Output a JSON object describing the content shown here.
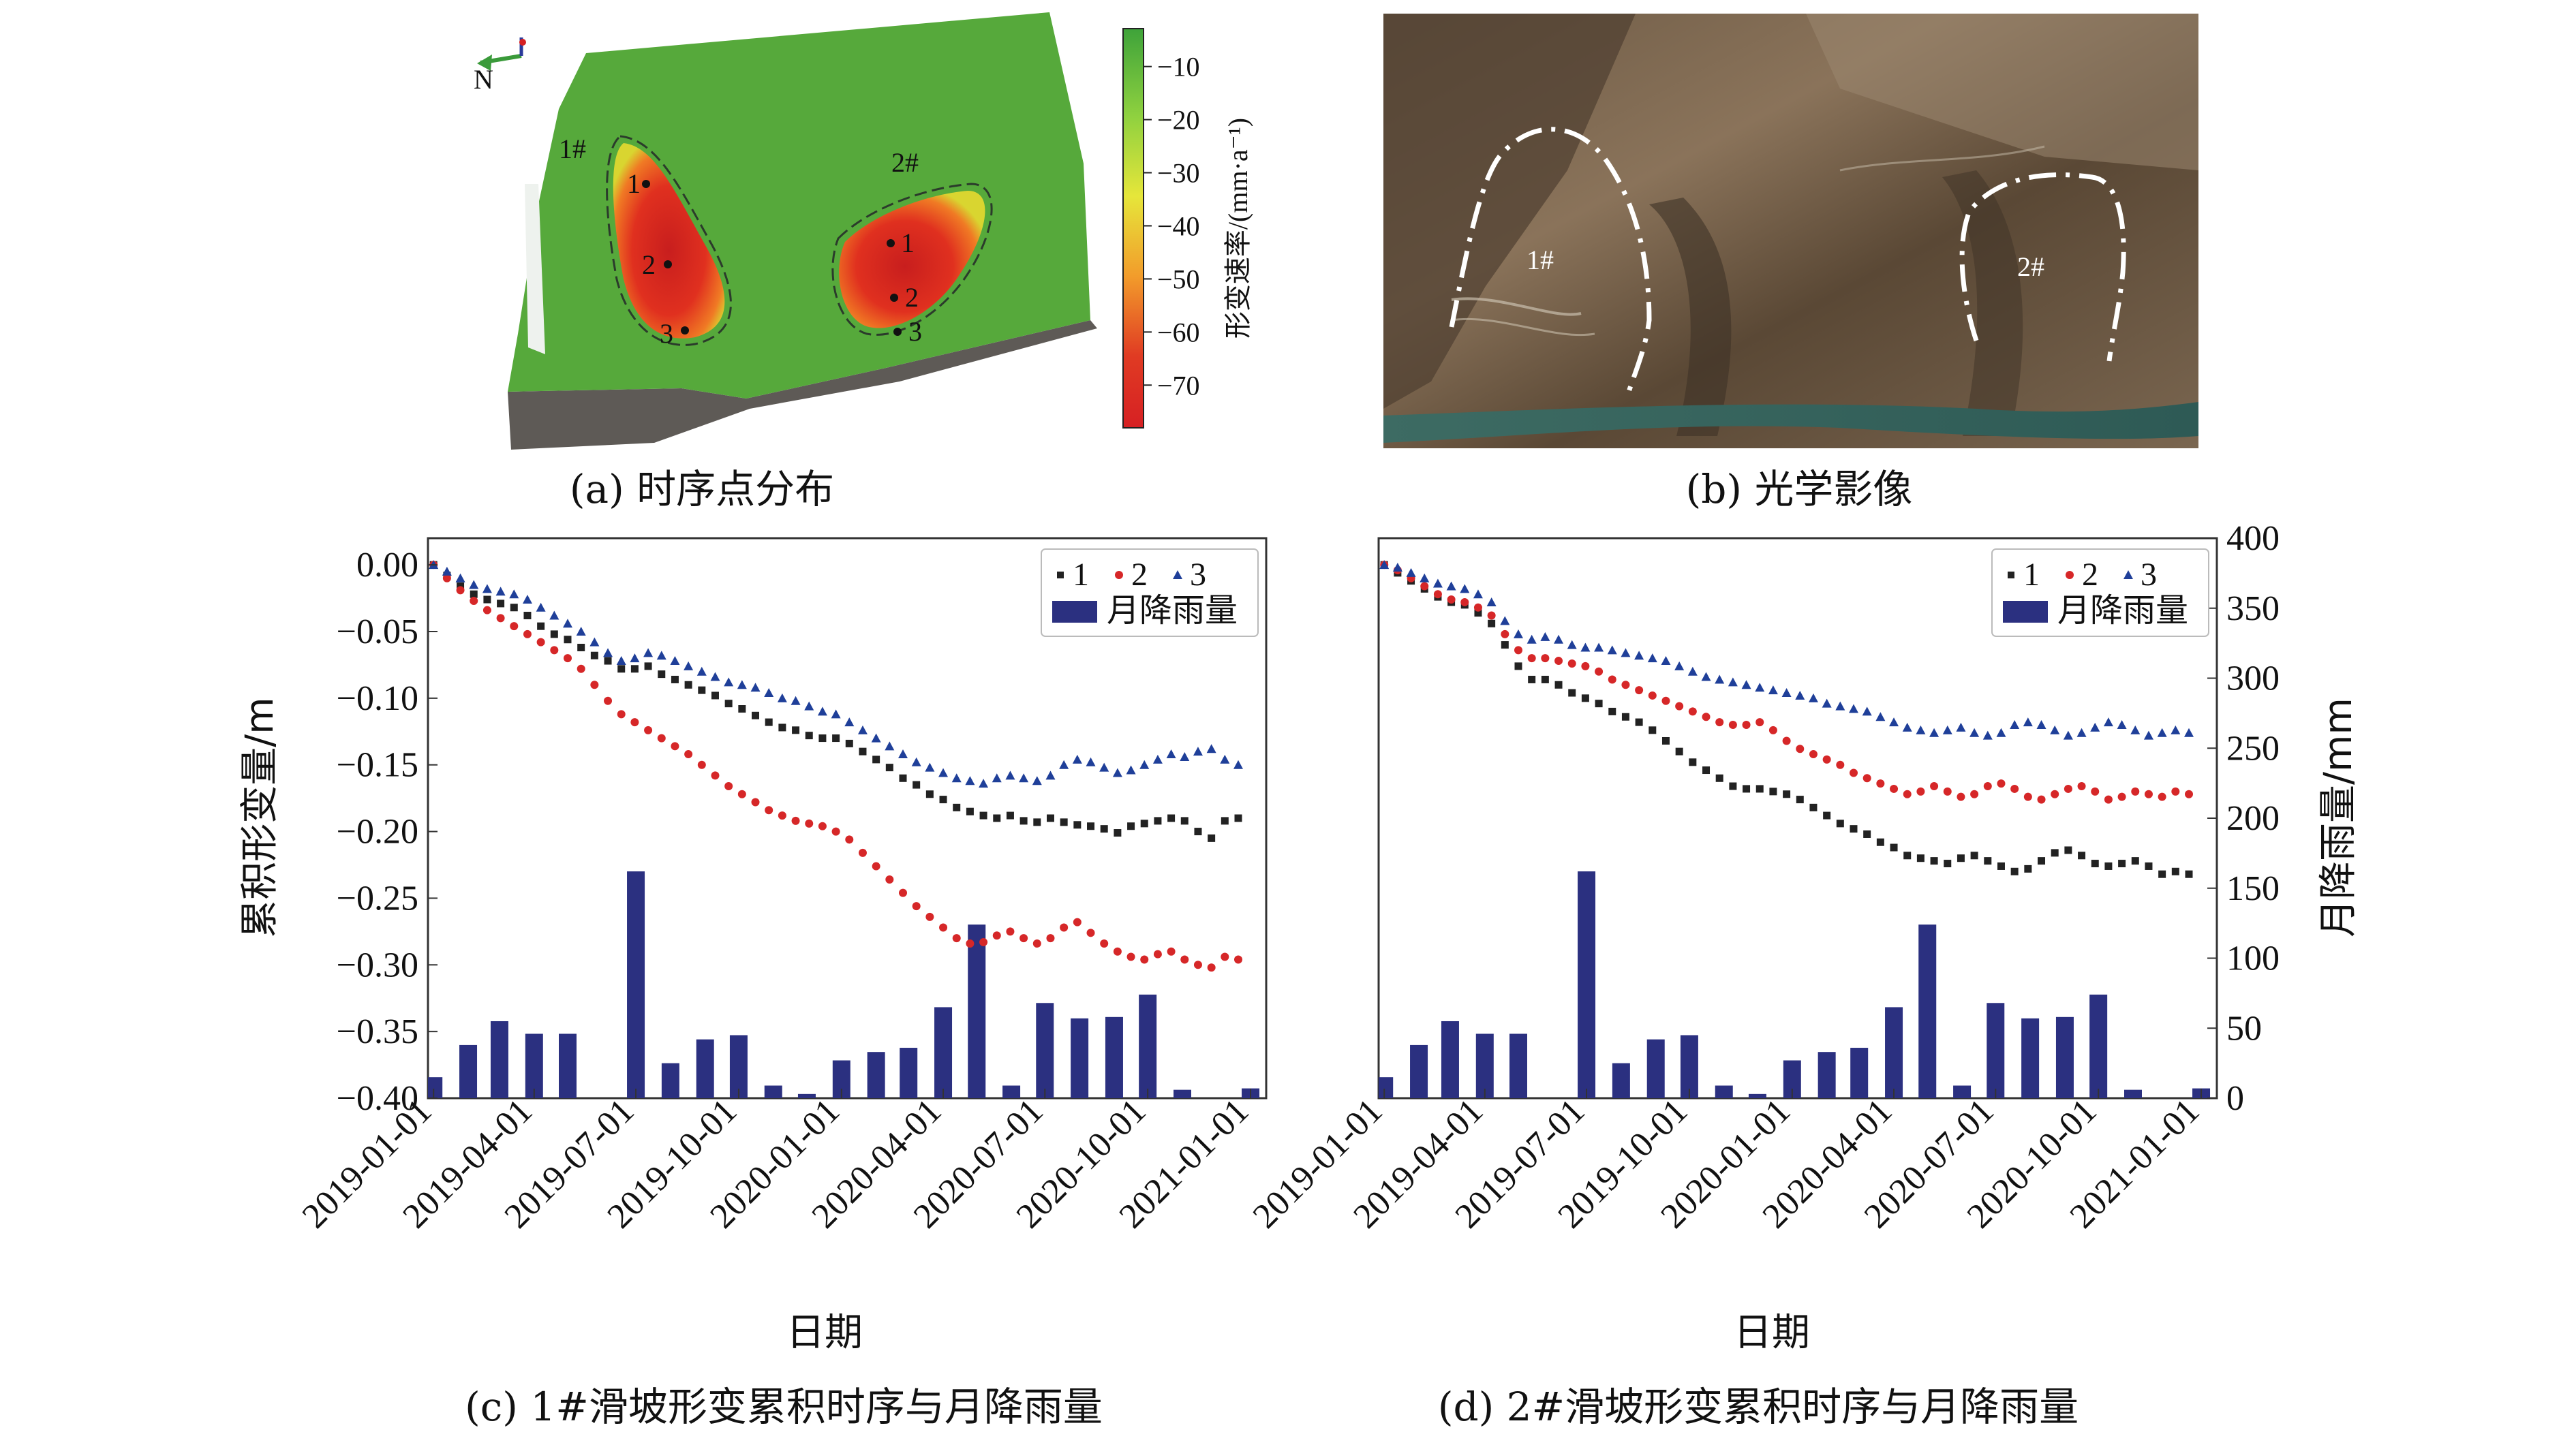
{
  "captions": {
    "a": "(a) 时序点分布",
    "b": "(b) 光学影像",
    "c": "(c) 1#滑坡形变累积时序与月降雨量",
    "d": "(d) 2#滑坡形变累积时序与月降雨量"
  },
  "panel_a": {
    "north": "N",
    "zone1_label": "1#",
    "zone2_label": "2#",
    "points": [
      "1",
      "2",
      "3"
    ],
    "colorbar": {
      "label": "形变速率/(mm·a⁻¹)",
      "ticks": [
        "−10",
        "−20",
        "−30",
        "−40",
        "−50",
        "−60",
        "−70"
      ],
      "colors": [
        "#3ea33a",
        "#8fd13f",
        "#e6e63a",
        "#f29c2b",
        "#e03b23",
        "#d62023"
      ]
    }
  },
  "panel_b": {
    "zone1_label": "1#",
    "zone2_label": "2#"
  },
  "chart_data": [
    {
      "type": "scatter",
      "title": "(c) 1#滑坡形变累积时序与月降雨量",
      "xlabel": "日期",
      "ylabel": "累积形变量/m",
      "y2label": "月降雨量/mm",
      "xticks": [
        "2019-01-01",
        "2019-04-01",
        "2019-07-01",
        "2019-10-01",
        "2020-01-01",
        "2020-04-01",
        "2020-07-01",
        "2020-10-01",
        "2021-01-01"
      ],
      "yticks": [
        "0.00",
        "−0.05",
        "−0.10",
        "−0.15",
        "−0.20",
        "−0.25",
        "−0.30",
        "−0.35",
        "−0.40"
      ],
      "y2ticks": [],
      "xlim": [
        -5,
        745
      ],
      "ylim": [
        -0.4,
        0.02
      ],
      "y2lim": [
        0,
        400
      ],
      "legend": {
        "series1": "1",
        "series2": "2",
        "series3": "3",
        "bars": "月降雨量"
      },
      "x_days": [
        0,
        12,
        24,
        36,
        48,
        60,
        72,
        84,
        96,
        108,
        120,
        132,
        144,
        156,
        168,
        180,
        192,
        204,
        216,
        228,
        240,
        252,
        264,
        276,
        288,
        300,
        312,
        324,
        336,
        348,
        360,
        372,
        384,
        396,
        408,
        420,
        432,
        444,
        456,
        468,
        480,
        492,
        504,
        516,
        528,
        540,
        552,
        564,
        576,
        588,
        600,
        612,
        624,
        636,
        648,
        660,
        672,
        684,
        696,
        708,
        720
      ],
      "series": [
        {
          "name": "1",
          "color": "#222222",
          "marker": "square",
          "values": [
            0.0,
            -0.008,
            -0.016,
            -0.022,
            -0.026,
            -0.029,
            -0.032,
            -0.038,
            -0.046,
            -0.052,
            -0.056,
            -0.062,
            -0.068,
            -0.072,
            -0.078,
            -0.078,
            -0.076,
            -0.082,
            -0.086,
            -0.09,
            -0.094,
            -0.098,
            -0.104,
            -0.108,
            -0.113,
            -0.118,
            -0.122,
            -0.124,
            -0.128,
            -0.13,
            -0.13,
            -0.134,
            -0.14,
            -0.146,
            -0.152,
            -0.16,
            -0.165,
            -0.172,
            -0.176,
            -0.182,
            -0.185,
            -0.188,
            -0.19,
            -0.188,
            -0.192,
            -0.193,
            -0.19,
            -0.193,
            -0.195,
            -0.196,
            -0.198,
            -0.201,
            -0.196,
            -0.194,
            -0.192,
            -0.19,
            -0.192,
            -0.2,
            -0.205,
            -0.192,
            -0.19
          ]
        },
        {
          "name": "2",
          "color": "#d62728",
          "marker": "circle",
          "values": [
            0.0,
            -0.01,
            -0.019,
            -0.027,
            -0.034,
            -0.04,
            -0.046,
            -0.052,
            -0.058,
            -0.064,
            -0.07,
            -0.078,
            -0.09,
            -0.102,
            -0.112,
            -0.118,
            -0.124,
            -0.13,
            -0.136,
            -0.142,
            -0.15,
            -0.158,
            -0.166,
            -0.172,
            -0.178,
            -0.184,
            -0.188,
            -0.192,
            -0.194,
            -0.196,
            -0.2,
            -0.206,
            -0.216,
            -0.226,
            -0.236,
            -0.246,
            -0.256,
            -0.264,
            -0.272,
            -0.28,
            -0.284,
            -0.283,
            -0.278,
            -0.275,
            -0.28,
            -0.284,
            -0.28,
            -0.272,
            -0.268,
            -0.276,
            -0.284,
            -0.29,
            -0.294,
            -0.296,
            -0.292,
            -0.29,
            -0.296,
            -0.3,
            -0.302,
            -0.294,
            -0.296
          ]
        },
        {
          "name": "3",
          "color": "#1f3f99",
          "marker": "triangle",
          "values": [
            0.0,
            -0.005,
            -0.01,
            -0.015,
            -0.018,
            -0.02,
            -0.022,
            -0.026,
            -0.032,
            -0.038,
            -0.044,
            -0.05,
            -0.058,
            -0.066,
            -0.072,
            -0.07,
            -0.066,
            -0.068,
            -0.072,
            -0.076,
            -0.08,
            -0.084,
            -0.088,
            -0.09,
            -0.092,
            -0.096,
            -0.1,
            -0.102,
            -0.106,
            -0.11,
            -0.112,
            -0.118,
            -0.124,
            -0.13,
            -0.136,
            -0.142,
            -0.148,
            -0.152,
            -0.156,
            -0.16,
            -0.162,
            -0.164,
            -0.16,
            -0.158,
            -0.16,
            -0.162,
            -0.158,
            -0.15,
            -0.146,
            -0.148,
            -0.152,
            -0.156,
            -0.154,
            -0.15,
            -0.146,
            -0.142,
            -0.144,
            -0.14,
            -0.138,
            -0.146,
            -0.15
          ]
        }
      ],
      "bar_x_days": [
        0,
        31,
        59,
        90,
        120,
        151,
        181,
        212,
        243,
        273,
        304,
        334,
        365,
        396,
        425,
        456,
        486,
        517,
        547,
        578,
        609,
        639,
        670,
        700,
        731
      ],
      "bars": [
        15,
        38,
        55,
        46,
        46,
        0,
        162,
        25,
        42,
        45,
        9,
        3,
        27,
        33,
        36,
        65,
        124,
        9,
        68,
        57,
        58,
        74,
        6,
        0,
        7
      ]
    },
    {
      "type": "scatter",
      "title": "(d) 2#滑坡形变累积时序与月降雨量",
      "xlabel": "日期",
      "ylabel": "",
      "y2label": "月降雨量/mm",
      "xticks": [
        "2019-01-01",
        "2019-04-01",
        "2019-07-01",
        "2019-10-01",
        "2020-01-01",
        "2020-04-01",
        "2020-07-01",
        "2020-10-01",
        "2021-01-01"
      ],
      "yticks": [],
      "y2ticks": [
        "400",
        "350",
        "300",
        "250",
        "200",
        "150",
        "100",
        "50",
        "0"
      ],
      "xlim": [
        -5,
        745
      ],
      "ylim": [
        -0.4,
        0.02
      ],
      "y2lim": [
        0,
        400
      ],
      "legend": {
        "series1": "1",
        "series2": "2",
        "series3": "3",
        "bars": "月降雨量"
      },
      "x_days": [
        0,
        12,
        24,
        36,
        48,
        60,
        72,
        84,
        96,
        108,
        120,
        132,
        144,
        156,
        168,
        180,
        192,
        204,
        216,
        228,
        240,
        252,
        264,
        276,
        288,
        300,
        312,
        324,
        336,
        348,
        360,
        372,
        384,
        396,
        408,
        420,
        432,
        444,
        456,
        468,
        480,
        492,
        504,
        516,
        528,
        540,
        552,
        564,
        576,
        588,
        600,
        612,
        624,
        636,
        648,
        660,
        672,
        684,
        696,
        708,
        720
      ],
      "series": [
        {
          "name": "1",
          "color": "#222222",
          "marker": "square",
          "values": [
            0.0,
            -0.006,
            -0.012,
            -0.018,
            -0.024,
            -0.028,
            -0.03,
            -0.036,
            -0.044,
            -0.06,
            -0.076,
            -0.086,
            -0.086,
            -0.09,
            -0.096,
            -0.1,
            -0.104,
            -0.11,
            -0.114,
            -0.118,
            -0.124,
            -0.132,
            -0.14,
            -0.148,
            -0.154,
            -0.16,
            -0.166,
            -0.168,
            -0.168,
            -0.17,
            -0.172,
            -0.176,
            -0.182,
            -0.188,
            -0.194,
            -0.198,
            -0.202,
            -0.208,
            -0.212,
            -0.218,
            -0.22,
            -0.222,
            -0.224,
            -0.22,
            -0.218,
            -0.222,
            -0.226,
            -0.23,
            -0.228,
            -0.222,
            -0.216,
            -0.214,
            -0.218,
            -0.224,
            -0.226,
            -0.224,
            -0.222,
            -0.226,
            -0.232,
            -0.23,
            -0.232
          ]
        },
        {
          "name": "2",
          "color": "#d62728",
          "marker": "circle",
          "values": [
            0.0,
            -0.004,
            -0.01,
            -0.016,
            -0.022,
            -0.026,
            -0.028,
            -0.032,
            -0.038,
            -0.052,
            -0.064,
            -0.07,
            -0.07,
            -0.072,
            -0.074,
            -0.076,
            -0.08,
            -0.086,
            -0.09,
            -0.094,
            -0.098,
            -0.102,
            -0.106,
            -0.11,
            -0.114,
            -0.118,
            -0.12,
            -0.12,
            -0.118,
            -0.124,
            -0.132,
            -0.138,
            -0.142,
            -0.146,
            -0.15,
            -0.156,
            -0.16,
            -0.164,
            -0.168,
            -0.172,
            -0.17,
            -0.166,
            -0.17,
            -0.174,
            -0.172,
            -0.166,
            -0.164,
            -0.168,
            -0.174,
            -0.176,
            -0.172,
            -0.168,
            -0.166,
            -0.17,
            -0.176,
            -0.174,
            -0.17,
            -0.172,
            -0.174,
            -0.17,
            -0.172
          ]
        },
        {
          "name": "3",
          "color": "#1f3f99",
          "marker": "triangle",
          "values": [
            0.0,
            -0.002,
            -0.006,
            -0.01,
            -0.014,
            -0.016,
            -0.018,
            -0.022,
            -0.028,
            -0.042,
            -0.052,
            -0.056,
            -0.054,
            -0.056,
            -0.06,
            -0.062,
            -0.062,
            -0.064,
            -0.066,
            -0.068,
            -0.07,
            -0.072,
            -0.076,
            -0.08,
            -0.084,
            -0.086,
            -0.088,
            -0.09,
            -0.092,
            -0.094,
            -0.096,
            -0.098,
            -0.1,
            -0.104,
            -0.106,
            -0.108,
            -0.11,
            -0.114,
            -0.118,
            -0.122,
            -0.124,
            -0.126,
            -0.124,
            -0.122,
            -0.126,
            -0.128,
            -0.126,
            -0.12,
            -0.118,
            -0.12,
            -0.124,
            -0.128,
            -0.126,
            -0.122,
            -0.118,
            -0.12,
            -0.124,
            -0.128,
            -0.126,
            -0.124,
            -0.126
          ]
        }
      ],
      "bar_x_days": [
        0,
        31,
        59,
        90,
        120,
        151,
        181,
        212,
        243,
        273,
        304,
        334,
        365,
        396,
        425,
        456,
        486,
        517,
        547,
        578,
        609,
        639,
        670,
        700,
        731
      ],
      "bars": [
        15,
        38,
        55,
        46,
        46,
        0,
        162,
        25,
        42,
        45,
        9,
        3,
        27,
        33,
        36,
        65,
        124,
        9,
        68,
        57,
        58,
        74,
        6,
        0,
        7
      ]
    }
  ]
}
